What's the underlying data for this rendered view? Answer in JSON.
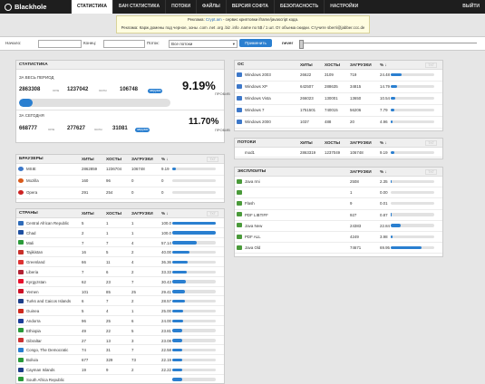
{
  "header": {
    "logo": "Blackhole",
    "nav": [
      "СТАТИСТИКА",
      "БАН СТАТИСТИКА",
      "ПОТОКИ",
      "ФАЙЛЫ",
      "ВЕРСИЯ СОФТА",
      "БЕЗОПАСНОСТЬ",
      "НАСТРОЙКИ"
    ],
    "exit": "ВЫЙТИ"
  },
  "promo": {
    "line1_pre": "Реклама: ",
    "line1_link": "Crypt.am",
    "line1_post": " - сервис криптовки iframe/javascript кода.",
    "line2": "Реклама: Карж домены под черное, зоны .com .net .org .biz .info .name по 5$ / 1 шт. От объема скидки. Стучите sberri@jabber.ccc.de"
  },
  "filter": {
    "start_label": "Начало:",
    "end_label": "Конец:",
    "stream_label": "Поток:",
    "stream_value": "Все потоки",
    "apply": "Применить",
    "never": "never"
  },
  "stats": {
    "title": "СТАТИСТИКА",
    "period_label": "ЗА ВЕСЬ ПЕРИОД",
    "period_hits": "2863308",
    "period_hosts": "1237042",
    "period_loads": "106748",
    "period_pct": "9.19%",
    "period_fill": 0.0919,
    "today_label": "ЗА СЕГОДНЯ",
    "today_hits": "668777",
    "today_hosts": "277627",
    "today_loads": "31081",
    "today_pct": "11.70%",
    "today_fill": 0.117,
    "hits_small": "хиты",
    "hosts_small": "хосты",
    "loads_small": "загрузки",
    "rost": "ПРОБИВ"
  },
  "browsers": {
    "title": "БРАУЗЕРЫ",
    "cols": [
      "ХИТЫ",
      "ХОСТЫ",
      "ЗАГРУЗКИ",
      "% ↓"
    ],
    "txt": "TXT",
    "rows": [
      {
        "name": "MSIE",
        "hits": "2862859",
        "hosts": "1236704",
        "loads": "106748",
        "pct": "9.19",
        "fill": 0.0919,
        "color": "#3d78c9"
      },
      {
        "name": "Mozilla",
        "hits": "160",
        "hosts": "96",
        "loads": "0",
        "pct": "0",
        "fill": 0,
        "color": "#d95a1a"
      },
      {
        "name": "Opera",
        "hits": "291",
        "hosts": "254",
        "loads": "0",
        "pct": "0",
        "fill": 0,
        "color": "#cc2222"
      }
    ]
  },
  "countries": {
    "title": "СТРАНЫ",
    "cols": [
      "ХИТЫ",
      "ХОСТЫ",
      "ЗАГРУЗКИ",
      "% ↓"
    ],
    "txt": "TXT",
    "rows": [
      {
        "name": "Central African Republic",
        "hits": "5",
        "hosts": "1",
        "loads": "1",
        "pct": "100.0",
        "fill": 1.0,
        "color": "#2e6bb8"
      },
      {
        "name": "Chad",
        "hits": "2",
        "hosts": "1",
        "loads": "1",
        "pct": "100.0",
        "fill": 1.0,
        "color": "#1e4fa0"
      },
      {
        "name": "Mali",
        "hits": "7",
        "hosts": "7",
        "loads": "4",
        "pct": "57.14",
        "fill": 0.5714,
        "color": "#2b9a3a"
      },
      {
        "name": "Tajikistan",
        "hits": "16",
        "hosts": "5",
        "loads": "2",
        "pct": "40.00",
        "fill": 0.4,
        "color": "#c8302a"
      },
      {
        "name": "Greenland",
        "hits": "66",
        "hosts": "11",
        "loads": "4",
        "pct": "36.36",
        "fill": 0.3636,
        "color": "#d33"
      },
      {
        "name": "Liberia",
        "hits": "7",
        "hosts": "6",
        "loads": "2",
        "pct": "33.33",
        "fill": 0.3333,
        "color": "#b22234"
      },
      {
        "name": "Kyrgyzstan",
        "hits": "62",
        "hosts": "23",
        "loads": "7",
        "pct": "30.43",
        "fill": 0.3043,
        "color": "#e8112d"
      },
      {
        "name": "Yemen",
        "hits": "101",
        "hosts": "85",
        "loads": "25",
        "pct": "29.41",
        "fill": 0.2941,
        "color": "#ce1126"
      },
      {
        "name": "Turks and Caicos Islands",
        "hits": "6",
        "hosts": "7",
        "loads": "2",
        "pct": "28.57",
        "fill": 0.2857,
        "color": "#1e3f8a"
      },
      {
        "name": "Guinea",
        "hits": "5",
        "hosts": "4",
        "loads": "1",
        "pct": "25.00",
        "fill": 0.25,
        "color": "#cf2a1e"
      },
      {
        "name": "Andorra",
        "hits": "96",
        "hosts": "25",
        "loads": "6",
        "pct": "24.00",
        "fill": 0.24,
        "color": "#1d3f9a"
      },
      {
        "name": "Ethiopia",
        "hits": "49",
        "hosts": "22",
        "loads": "5",
        "pct": "23.81",
        "fill": 0.2381,
        "color": "#2b9a3a"
      },
      {
        "name": "Gibraltar",
        "hits": "27",
        "hosts": "13",
        "loads": "3",
        "pct": "23.08",
        "fill": 0.2308,
        "color": "#c33"
      },
      {
        "name": "Congo, The Democratic",
        "hits": "74",
        "hosts": "31",
        "loads": "7",
        "pct": "22.58",
        "fill": 0.2258,
        "color": "#2a7fd0"
      },
      {
        "name": "Bolivia",
        "hits": "677",
        "hosts": "329",
        "loads": "73",
        "pct": "22.19",
        "fill": 0.2219,
        "color": "#2b9a3a"
      },
      {
        "name": "Cayman Islands",
        "hits": "19",
        "hosts": "9",
        "loads": "2",
        "pct": "22.22",
        "fill": 0.2222,
        "color": "#1e3f8a"
      },
      {
        "name": "South Africa Republic",
        "hits": "",
        "hosts": "",
        "loads": "",
        "pct": "",
        "fill": 0.22,
        "color": "#2b9a3a"
      }
    ]
  },
  "os": {
    "title": "ОС",
    "cols": [
      "ХИТЫ",
      "ХОСТЫ",
      "ЗАГРУЗКИ",
      "% ↓"
    ],
    "txt": "TXT",
    "rows": [
      {
        "name": "Windows 2003",
        "hits": "26622",
        "hosts": "3109",
        "loads": "719",
        "pct": "24.48",
        "fill": 0.2448
      },
      {
        "name": "Windows XP",
        "hits": "642507",
        "hosts": "288635",
        "loads": "34815",
        "pct": "14.79",
        "fill": 0.1479
      },
      {
        "name": "Windows Vista",
        "hits": "266023",
        "hosts": "130001",
        "loads": "13650",
        "pct": "10.54",
        "fill": 0.1054
      },
      {
        "name": "Windows 7",
        "hits": "1751501",
        "hosts": "740015",
        "loads": "56206",
        "pct": "7.79",
        "fill": 0.0779
      },
      {
        "name": "Windows 2000",
        "hits": "1037",
        "hosts": "488",
        "loads": "20",
        "pct": "4.96",
        "fill": 0.0496
      }
    ]
  },
  "streams": {
    "title": "ПОТОКИ",
    "cols": [
      "ХИТЫ",
      "ХОСТЫ",
      "ЗАГРУЗКИ",
      "% ↓"
    ],
    "txt": "TXT",
    "rows": [
      {
        "name": "mod1",
        "hits": "2863319",
        "hosts": "1237049",
        "loads": "106748",
        "pct": "9.19",
        "fill": 0.0919
      }
    ]
  },
  "exploits": {
    "title": "ЭКСПЛОИТЫ",
    "cols": [
      "ЗАГРУЗКИ",
      "% ↓"
    ],
    "txt": "TXT",
    "rows": [
      {
        "name": "Java rmi",
        "loads": "2508",
        "pct": "2.35",
        "fill": 0.0235
      },
      {
        "name": "",
        "loads": "1",
        "pct": "0.00",
        "fill": 0
      },
      {
        "name": "Flash",
        "loads": "9",
        "pct": "0.01",
        "fill": 0.0001
      },
      {
        "name": "PDF LIBTIFF",
        "loads": "927",
        "pct": "0.87",
        "fill": 0.0087
      },
      {
        "name": "Java New",
        "loads": "24383",
        "pct": "22.84",
        "fill": 0.2284
      },
      {
        "name": "PDF ALL",
        "loads": "4249",
        "pct": "3.98",
        "fill": 0.0398
      },
      {
        "name": "Java Old",
        "loads": "74671",
        "pct": "69.95",
        "fill": 0.6995
      }
    ]
  }
}
